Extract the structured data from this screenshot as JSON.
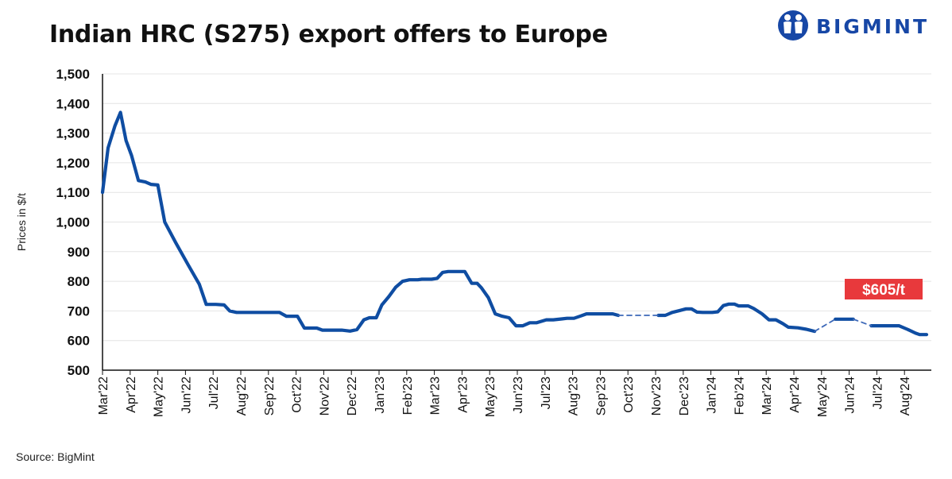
{
  "title": "Indian HRC (S275) export offers to Europe",
  "brand": "BIGMINT",
  "source": "Source: BigMint",
  "chart_data": {
    "type": "line",
    "title": "Indian HRC (S275) export offers to Europe",
    "xlabel": "",
    "ylabel": "Prices in $/t",
    "ylim": [
      500,
      1500
    ],
    "yticks": [
      500,
      600,
      700,
      800,
      900,
      1000,
      1100,
      1200,
      1300,
      1400,
      1500
    ],
    "ytick_labels": [
      "500",
      "600",
      "700",
      "800",
      "900",
      "1,000",
      "1,100",
      "1,200",
      "1,300",
      "1,400",
      "1,500"
    ],
    "categories": [
      "Mar'22",
      "Apr'22",
      "May'22",
      "Jun'22",
      "Jul'22",
      "Aug'22",
      "Sep'22",
      "Oct'22",
      "Nov'22",
      "Dec'22",
      "Jan'23",
      "Feb'23",
      "Mar'23",
      "Apr'23",
      "May'23",
      "Jun'23",
      "Jul'23",
      "Aug'23",
      "Sep'23",
      "Oct'23",
      "Nov'23",
      "Dec'23",
      "Jan'24",
      "Feb'24",
      "Mar'24",
      "Apr'24",
      "May'24",
      "Jun'24",
      "Jul'24",
      "Aug'24"
    ],
    "grid": true,
    "annotation": {
      "text": "$605/t",
      "color": "#e8393c"
    },
    "series": [
      {
        "style": "solid",
        "color": "#0f4da2",
        "segments": [
          [
            [
              0,
              1100
            ],
            [
              0.2,
              1250
            ],
            [
              0.45,
              1325
            ],
            [
              0.65,
              1370
            ],
            [
              0.85,
              1275
            ],
            [
              1.05,
              1225
            ],
            [
              1.3,
              1140
            ],
            [
              1.55,
              1135
            ],
            [
              1.75,
              1127
            ],
            [
              2.0,
              1125
            ],
            [
              2.25,
              1000
            ],
            [
              2.65,
              930
            ],
            [
              3.1,
              855
            ],
            [
              3.5,
              790
            ],
            [
              3.75,
              722
            ],
            [
              4.1,
              722
            ],
            [
              4.4,
              720
            ],
            [
              4.6,
              700
            ],
            [
              4.85,
              695
            ],
            [
              5.5,
              695
            ],
            [
              6.1,
              695
            ],
            [
              6.4,
              695
            ],
            [
              6.65,
              682
            ],
            [
              7.05,
              682
            ],
            [
              7.3,
              642
            ],
            [
              7.75,
              642
            ],
            [
              7.95,
              635
            ],
            [
              8.3,
              635
            ],
            [
              8.65,
              635
            ],
            [
              8.95,
              632
            ],
            [
              9.2,
              637
            ],
            [
              9.45,
              670
            ],
            [
              9.65,
              677
            ],
            [
              9.9,
              677
            ],
            [
              10.1,
              720
            ],
            [
              10.35,
              748
            ],
            [
              10.6,
              780
            ],
            [
              10.85,
              800
            ],
            [
              11.1,
              805
            ],
            [
              11.4,
              805
            ],
            [
              11.55,
              807
            ],
            [
              11.9,
              807
            ],
            [
              12.1,
              810
            ],
            [
              12.3,
              830
            ],
            [
              12.5,
              833
            ],
            [
              12.75,
              833
            ],
            [
              13.1,
              833
            ],
            [
              13.35,
              793
            ],
            [
              13.55,
              793
            ],
            [
              13.7,
              778
            ],
            [
              13.95,
              745
            ],
            [
              14.2,
              690
            ],
            [
              14.45,
              682
            ],
            [
              14.7,
              677
            ],
            [
              14.95,
              650
            ],
            [
              15.2,
              650
            ],
            [
              15.45,
              660
            ],
            [
              15.7,
              660
            ],
            [
              16.05,
              670
            ],
            [
              16.3,
              670
            ],
            [
              16.6,
              673
            ],
            [
              16.8,
              675
            ],
            [
              17.05,
              675
            ],
            [
              17.3,
              683
            ],
            [
              17.5,
              690
            ],
            [
              17.9,
              690
            ],
            [
              18.3,
              690
            ],
            [
              18.45,
              690
            ],
            [
              18.65,
              685
            ]
          ],
          [
            [
              20.1,
              685
            ],
            [
              20.35,
              685
            ],
            [
              20.6,
              695
            ],
            [
              20.9,
              702
            ],
            [
              21.1,
              707
            ],
            [
              21.3,
              707
            ],
            [
              21.5,
              696
            ],
            [
              21.7,
              695
            ],
            [
              22.05,
              695
            ],
            [
              22.25,
              697
            ],
            [
              22.45,
              718
            ],
            [
              22.65,
              723
            ],
            [
              22.85,
              723
            ],
            [
              23.0,
              717
            ],
            [
              23.35,
              717
            ],
            [
              23.55,
              708
            ],
            [
              23.85,
              690
            ],
            [
              24.1,
              670
            ],
            [
              24.35,
              670
            ],
            [
              24.6,
              657
            ],
            [
              24.8,
              645
            ],
            [
              25.15,
              643
            ],
            [
              25.45,
              638
            ],
            [
              25.75,
              631
            ]
          ],
          [
            [
              26.5,
              672
            ],
            [
              27.15,
              672
            ]
          ],
          [
            [
              27.8,
              650
            ],
            [
              28.1,
              650
            ],
            [
              28.5,
              650
            ],
            [
              28.8,
              650
            ],
            [
              29.1,
              638
            ],
            [
              29.4,
              625
            ],
            [
              29.55,
              620
            ],
            [
              29.8,
              620
            ]
          ]
        ]
      },
      {
        "style": "dashed",
        "color": "#3c68b8",
        "segments": [
          [
            [
              18.65,
              685
            ],
            [
              20.1,
              685
            ]
          ],
          [
            [
              25.75,
              631
            ],
            [
              26.5,
              672
            ]
          ],
          [
            [
              27.15,
              672
            ],
            [
              27.8,
              650
            ]
          ]
        ]
      }
    ]
  }
}
